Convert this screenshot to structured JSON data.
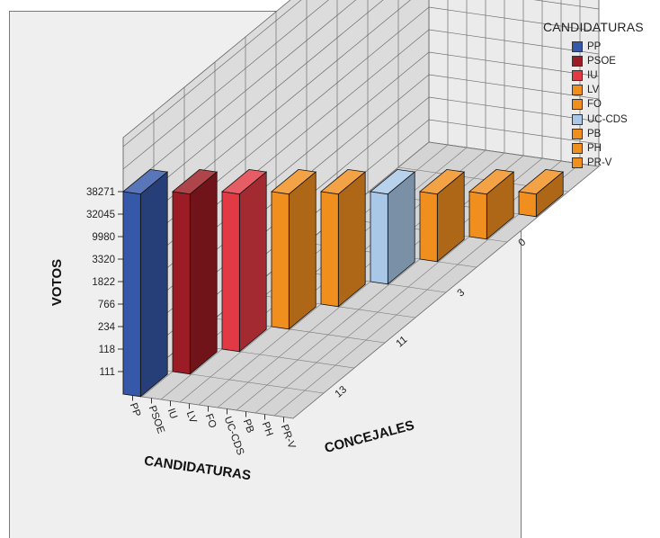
{
  "chart_data": {
    "type": "bar",
    "subtype": "3d-bar",
    "xlabel": "CANDIDATURAS",
    "ylabel": "VOTOS",
    "zlabel": "CONCEJALES",
    "categories": [
      "PP",
      "PSOE",
      "IU",
      "LV",
      "FO",
      "UC-CDS",
      "PB",
      "PH",
      "PR-V"
    ],
    "concejales_ticks": [
      "13",
      "11",
      "3",
      "0"
    ],
    "y_ticks": [
      "111",
      "118",
      "234",
      "766",
      "1822",
      "3320",
      "9980",
      "32045",
      "38271"
    ],
    "bars": [
      {
        "category": "PP",
        "votos": 38271,
        "concejales": 13,
        "color": "#3558a8"
      },
      {
        "category": "PSOE",
        "votos": 32045,
        "concejales": 11,
        "color": "#9b1c24"
      },
      {
        "category": "IU",
        "votos": 9980,
        "concejales": 3,
        "color": "#e23a44"
      },
      {
        "category": "LV",
        "votos": 3320,
        "concejales": 0,
        "color": "#f08f1e"
      },
      {
        "category": "FO",
        "votos": 1822,
        "concejales": 0,
        "color": "#f08f1e"
      },
      {
        "category": "UC-CDS",
        "votos": 766,
        "concejales": 0,
        "color": "#a9c8e8"
      },
      {
        "category": "PB",
        "votos": 234,
        "concejales": 0,
        "color": "#f08f1e"
      },
      {
        "category": "PH",
        "votos": 118,
        "concejales": 0,
        "color": "#f08f1e"
      },
      {
        "category": "PR-V",
        "votos": 111,
        "concejales": 0,
        "color": "#f08f1e"
      }
    ],
    "legend": {
      "title": "CANDIDATURAS",
      "position": "right",
      "entries": [
        {
          "label": "PP",
          "color": "#3558a8"
        },
        {
          "label": "PSOE",
          "color": "#9b1c24"
        },
        {
          "label": "IU",
          "color": "#e23a44"
        },
        {
          "label": "LV",
          "color": "#f08f1e"
        },
        {
          "label": "FO",
          "color": "#f08f1e"
        },
        {
          "label": "UC-CDS",
          "color": "#a9c8e8"
        },
        {
          "label": "PB",
          "color": "#f08f1e"
        },
        {
          "label": "PH",
          "color": "#f08f1e"
        },
        {
          "label": "PR-V",
          "color": "#f08f1e"
        }
      ]
    },
    "grid": true
  }
}
